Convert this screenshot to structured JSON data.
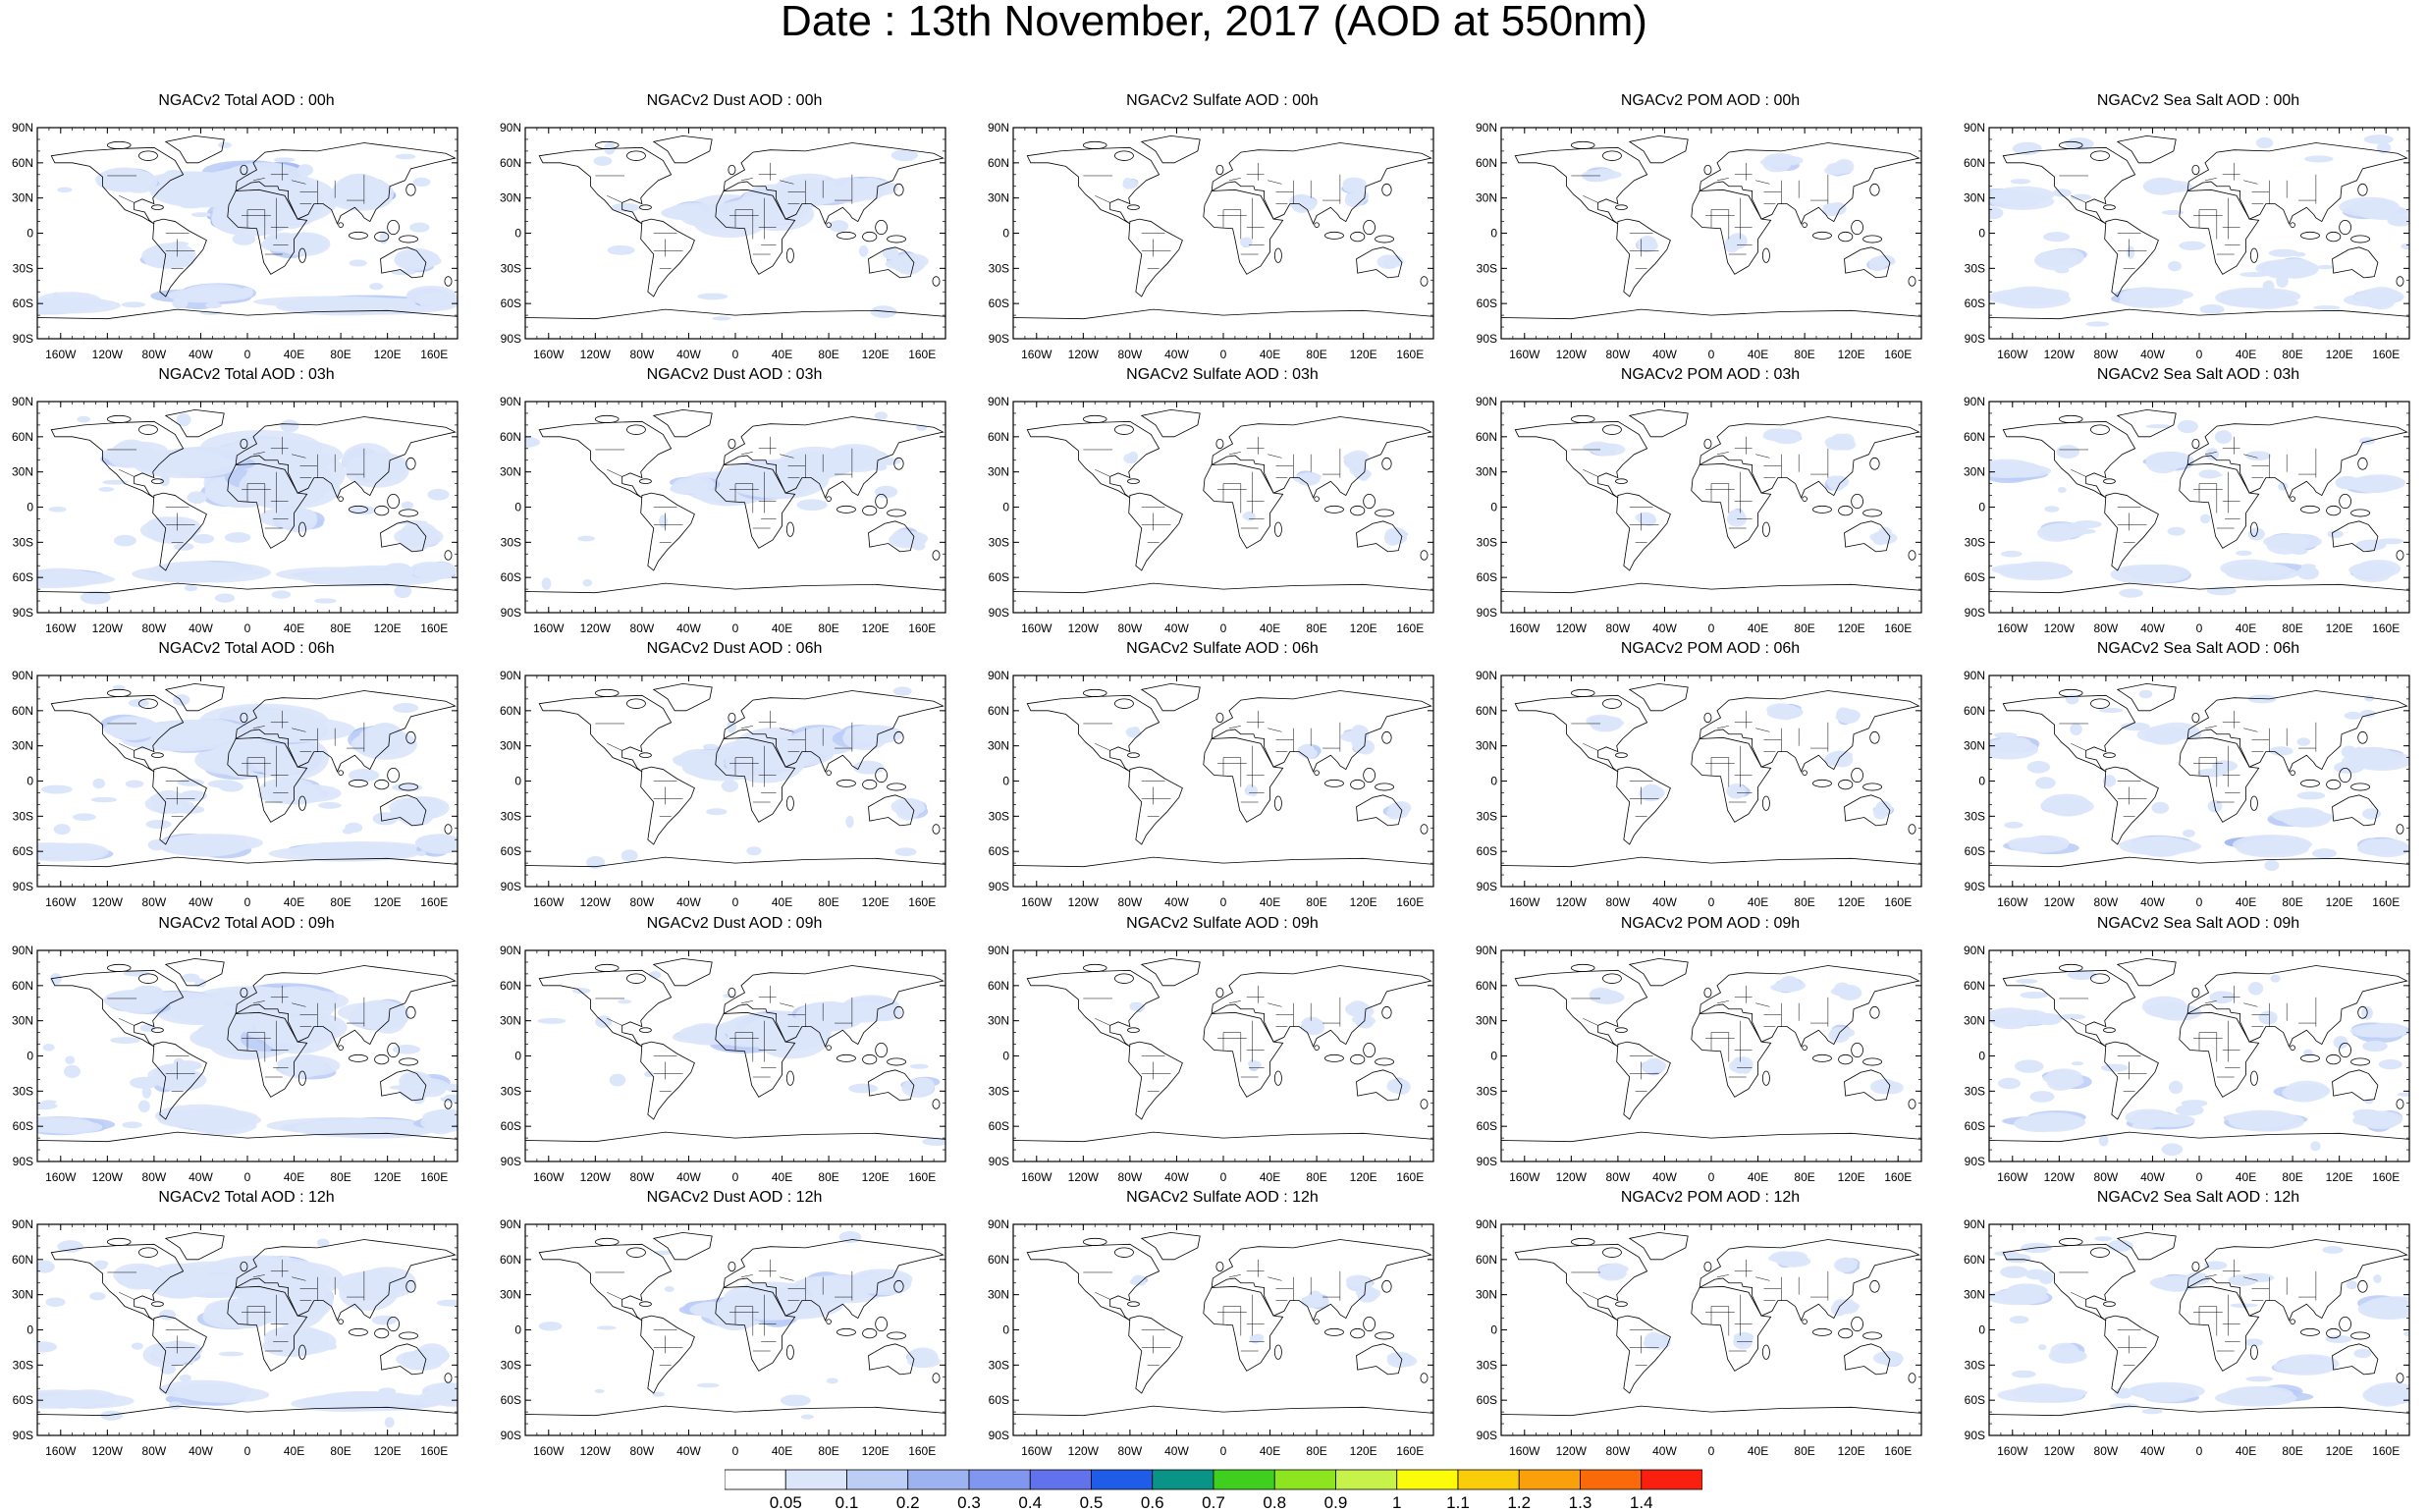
{
  "title": "Date : 13th November, 2017 (AOD at 550nm)",
  "panels": [
    [
      "NGACv2 Total AOD : 00h",
      "NGACv2 Dust AOD : 00h",
      "NGACv2 Sulfate AOD : 00h",
      "NGACv2 POM AOD : 00h",
      "NGACv2 Sea Salt AOD : 00h"
    ],
    [
      "NGACv2 Total AOD : 03h",
      "NGACv2 Dust AOD : 03h",
      "NGACv2 Sulfate AOD : 03h",
      "NGACv2 POM AOD : 03h",
      "NGACv2 Sea Salt AOD : 03h"
    ],
    [
      "NGACv2 Total AOD : 06h",
      "NGACv2 Dust AOD : 06h",
      "NGACv2 Sulfate AOD : 06h",
      "NGACv2 POM AOD : 06h",
      "NGACv2 Sea Salt AOD : 06h"
    ],
    [
      "NGACv2 Total AOD : 09h",
      "NGACv2 Dust AOD : 09h",
      "NGACv2 Sulfate AOD : 09h",
      "NGACv2 POM AOD : 09h",
      "NGACv2 Sea Salt  AOD : 09h"
    ],
    [
      "NGACv2 Total AOD  : 12h",
      "NGACv2 Dust AOD : 12h",
      "NGACv2 Sulfate AOD : 12h",
      "NGACv2 POM  AOD : 12h",
      "NGACv2 Sea Salt  AOD : 12h"
    ]
  ],
  "lat_ticks": [
    "90N",
    "60N",
    "30N",
    "0",
    "30S",
    "60S",
    "90S"
  ],
  "lon_ticks": [
    "160W",
    "120W",
    "80W",
    "40W",
    "0",
    "40E",
    "80E",
    "120E",
    "160E"
  ],
  "colorbar": {
    "labels": [
      "0.05",
      "0.1",
      "0.2",
      "0.3",
      "0.4",
      "0.5",
      "0.6",
      "0.7",
      "0.8",
      "0.9",
      "1",
      "1.1",
      "1.2",
      "1.3",
      "1.4"
    ],
    "colors": [
      "#ffffff",
      "#dbe6fb",
      "#bccdf6",
      "#9db3f1",
      "#8196ee",
      "#6172ec",
      "#1f5de9",
      "#0a9487",
      "#3ecf1f",
      "#8de51f",
      "#c7f24a",
      "#fbfb0a",
      "#fbcc0a",
      "#fb9f0a",
      "#fa6a0a",
      "#f92010"
    ]
  }
}
